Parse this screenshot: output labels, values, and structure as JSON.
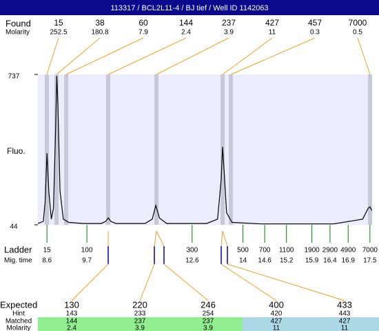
{
  "title": "113317 / BCL2L11-4 / BJ tief / Well ID 1142063",
  "found": {
    "label": "Found",
    "sublabel": "Molarity",
    "sizes": [
      15,
      38,
      60,
      144,
      237,
      427,
      457,
      7000
    ],
    "molarity": [
      252.5,
      180.8,
      7.9,
      2.4,
      3.9,
      11,
      0.3,
      0.5
    ]
  },
  "chart_data": {
    "type": "line",
    "y_axis_label": "Fluo.",
    "x": [
      8.35,
      8.5,
      8.55,
      8.6,
      8.65,
      8.72,
      8.78,
      8.84,
      8.87,
      8.9,
      8.96,
      9.05,
      9.2,
      9.6,
      10.1,
      10.22,
      10.29,
      10.36,
      10.5,
      11.3,
      11.5,
      11.6,
      11.7,
      11.9,
      13.0,
      13.3,
      13.4,
      13.44,
      13.48,
      13.55,
      13.7,
      14.5,
      16.5,
      17.3,
      17.45,
      17.5,
      17.55
    ],
    "values": [
      50,
      60,
      150,
      374,
      200,
      70,
      120,
      500,
      730,
      600,
      200,
      70,
      55,
      50,
      50,
      60,
      76,
      60,
      50,
      50,
      70,
      133,
      75,
      50,
      50,
      70,
      250,
      403,
      300,
      100,
      55,
      48,
      48,
      70,
      120,
      127,
      110
    ],
    "color": "#000000",
    "xlim": [
      8.35,
      17.56
    ],
    "ylim": [
      44,
      737
    ],
    "yticks": [
      44,
      737
    ]
  },
  "ladder": {
    "label": "Ladder",
    "sublabel": "Mig. time",
    "sizes": [
      15,
      100,
      300,
      500,
      700,
      1100,
      1900,
      2900,
      4900,
      7000
    ],
    "mig_times": [
      8.6,
      9.7,
      12.6,
      14,
      14.6,
      15.2,
      15.9,
      16.4,
      16.9,
      17.5
    ]
  },
  "expected": {
    "label": "Expected",
    "row_labels": [
      "Hint",
      "Matched",
      "Molarity"
    ],
    "values": [
      130,
      220,
      246,
      400,
      433
    ],
    "hint": [
      143,
      233,
      254,
      420,
      443
    ],
    "matched": [
      144,
      237,
      237,
      427,
      427
    ],
    "molarity": [
      2.4,
      3.9,
      3.9,
      11,
      11
    ]
  }
}
